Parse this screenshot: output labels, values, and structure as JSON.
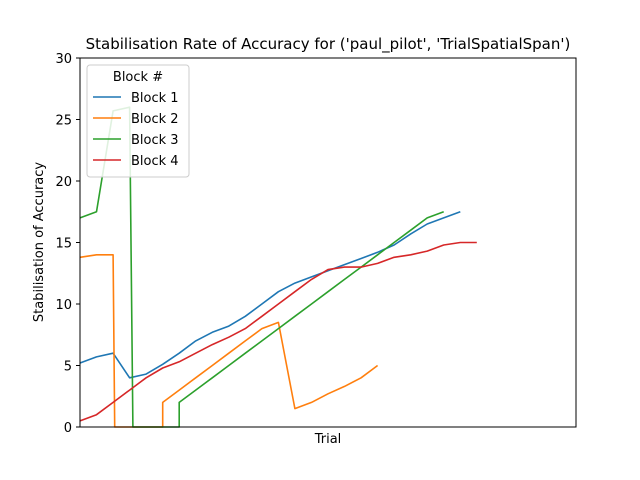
{
  "chart_data": {
    "type": "line",
    "title": "Stabilisation Rate of Accuracy for ('paul_pilot', 'TrialSpatialSpan')",
    "xlabel": "Trial",
    "ylabel": "Stabilisation of Accuracy",
    "xlim": [
      0,
      30
    ],
    "ylim": [
      0,
      30
    ],
    "y_ticks": [
      "0",
      "5",
      "10",
      "15",
      "20",
      "25",
      "30"
    ],
    "grid": false,
    "legend": {
      "title": "Block #",
      "placement": "upper-left"
    },
    "series": [
      {
        "name": "Block 1",
        "color": "#1f77b4",
        "points": [
          [
            0,
            5.2
          ],
          [
            1,
            5.7
          ],
          [
            2,
            6.0
          ],
          [
            3,
            4.0
          ],
          [
            4,
            4.3
          ],
          [
            5,
            5.1
          ],
          [
            6,
            6.0
          ],
          [
            7,
            7.0
          ],
          [
            8,
            7.7
          ],
          [
            9,
            8.2
          ],
          [
            10,
            9.0
          ],
          [
            11,
            10.0
          ],
          [
            12,
            11.0
          ],
          [
            13,
            11.7
          ],
          [
            14,
            12.2
          ],
          [
            15,
            12.7
          ],
          [
            16,
            13.2
          ],
          [
            17,
            13.7
          ],
          [
            18,
            14.2
          ],
          [
            19,
            14.8
          ],
          [
            20,
            15.7
          ],
          [
            21,
            16.5
          ],
          [
            22,
            17.0
          ],
          [
            23,
            17.5
          ]
        ]
      },
      {
        "name": "Block 2",
        "color": "#ff7f0e",
        "points": [
          [
            0,
            13.8
          ],
          [
            1,
            14.0
          ],
          [
            2,
            14.0
          ],
          [
            2.1,
            0
          ],
          [
            5,
            0
          ],
          [
            5,
            2.0
          ],
          [
            6,
            3.0
          ],
          [
            7,
            4.0
          ],
          [
            8,
            5.0
          ],
          [
            9,
            6.0
          ],
          [
            10,
            7.0
          ],
          [
            11,
            8.0
          ],
          [
            12,
            8.5
          ],
          [
            13,
            1.5
          ],
          [
            14,
            2.0
          ],
          [
            15,
            2.7
          ],
          [
            16,
            3.3
          ],
          [
            17,
            4.0
          ],
          [
            18,
            5.0
          ]
        ]
      },
      {
        "name": "Block 3",
        "color": "#2ca02c",
        "points": [
          [
            0,
            17.0
          ],
          [
            1,
            17.5
          ],
          [
            2,
            25.7
          ],
          [
            3,
            26.0
          ],
          [
            3.2,
            0
          ],
          [
            6,
            0
          ],
          [
            6,
            2.0
          ],
          [
            7,
            3.0
          ],
          [
            8,
            4.0
          ],
          [
            9,
            5.0
          ],
          [
            10,
            6.0
          ],
          [
            11,
            7.0
          ],
          [
            12,
            8.0
          ],
          [
            13,
            9.0
          ],
          [
            14,
            10.0
          ],
          [
            15,
            11.0
          ],
          [
            16,
            12.0
          ],
          [
            17,
            13.0
          ],
          [
            18,
            14.0
          ],
          [
            19,
            15.0
          ],
          [
            20,
            16.0
          ],
          [
            21,
            17.0
          ],
          [
            22,
            17.5
          ]
        ]
      },
      {
        "name": "Block 4",
        "color": "#d62728",
        "points": [
          [
            0,
            0.5
          ],
          [
            1,
            1.0
          ],
          [
            2,
            2.0
          ],
          [
            3,
            3.0
          ],
          [
            4,
            4.0
          ],
          [
            5,
            4.8
          ],
          [
            6,
            5.3
          ],
          [
            7,
            6.0
          ],
          [
            8,
            6.7
          ],
          [
            9,
            7.3
          ],
          [
            10,
            8.0
          ],
          [
            11,
            9.0
          ],
          [
            12,
            10.0
          ],
          [
            13,
            11.0
          ],
          [
            14,
            12.0
          ],
          [
            15,
            12.8
          ],
          [
            16,
            13.0
          ],
          [
            17,
            13.0
          ],
          [
            18,
            13.3
          ],
          [
            19,
            13.8
          ],
          [
            20,
            14.0
          ],
          [
            21,
            14.3
          ],
          [
            22,
            14.8
          ],
          [
            23,
            15.0
          ],
          [
            24,
            15.0
          ]
        ]
      }
    ]
  }
}
